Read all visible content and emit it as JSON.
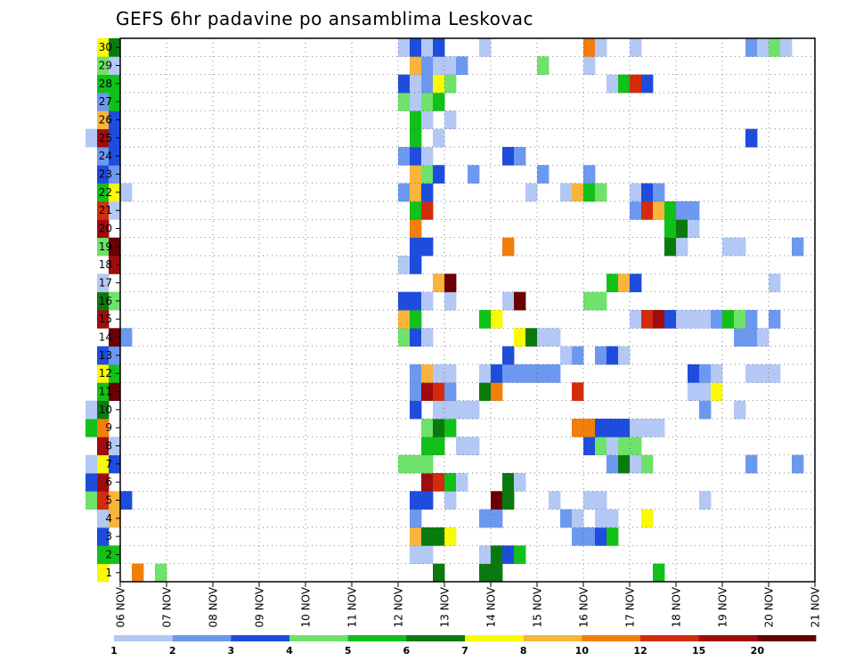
{
  "chart_data": {
    "type": "heatmap",
    "title": "GEFS 6hr padavine po ansamblima Leskovac",
    "xlabel": "",
    "ylabel": "",
    "x_ticks": [
      "06 NOV",
      "07 NOV",
      "08 NOV",
      "09 NOV",
      "10 NOV",
      "11 NOV",
      "12 NOV",
      "13 NOV",
      "14 NOV",
      "15 NOV",
      "16 NOV",
      "17 NOV",
      "18 NOV",
      "19 NOV",
      "20 NOV",
      "21 NOV"
    ],
    "y_ticks": [
      "1",
      "2",
      "3",
      "4",
      "5",
      "6",
      "7",
      "8",
      "9",
      "10",
      "11",
      "12",
      "13",
      "14",
      "15",
      "16",
      "17",
      "18",
      "19",
      "20",
      "21",
      "22",
      "23",
      "24",
      "25",
      "26",
      "27",
      "28",
      "29",
      "30"
    ],
    "steps_per_day": 4,
    "n_steps": 60,
    "legend": {
      "labels": [
        "1",
        "2",
        "3",
        "4",
        "5",
        "6",
        "7",
        "8",
        "10",
        "12",
        "15",
        "20"
      ],
      "colors": [
        "#b4c8f5",
        "#6c98f0",
        "#1e4ddd",
        "#6ee26a",
        "#12c01a",
        "#0a7a0e",
        "#f9f908",
        "#f9b43c",
        "#f27f0c",
        "#d22c0c",
        "#a00c0c",
        "#6a0004"
      ]
    },
    "cells": [
      [
        1,
        24,
        7
      ],
      [
        1,
        27,
        9
      ],
      [
        1,
        29,
        4
      ],
      [
        1,
        53,
        6
      ],
      [
        1,
        57,
        6
      ],
      [
        1,
        58,
        6
      ],
      [
        1,
        72,
        5
      ],
      [
        2,
        24,
        5
      ],
      [
        2,
        25,
        5
      ],
      [
        2,
        51,
        1
      ],
      [
        2,
        52,
        1
      ],
      [
        2,
        57,
        1
      ],
      [
        2,
        58,
        6
      ],
      [
        2,
        59,
        3
      ],
      [
        2,
        60,
        5
      ],
      [
        3,
        24,
        3
      ],
      [
        3,
        51,
        8
      ],
      [
        3,
        52,
        6
      ],
      [
        3,
        53,
        6
      ],
      [
        3,
        54,
        7
      ],
      [
        3,
        65,
        2
      ],
      [
        3,
        66,
        2
      ],
      [
        3,
        67,
        3
      ],
      [
        3,
        68,
        5
      ],
      [
        4,
        24,
        1
      ],
      [
        4,
        25,
        8
      ],
      [
        4,
        51,
        2
      ],
      [
        4,
        57,
        2
      ],
      [
        4,
        58,
        2
      ],
      [
        4,
        64,
        2
      ],
      [
        4,
        65,
        1
      ],
      [
        4,
        67,
        1
      ],
      [
        4,
        68,
        1
      ],
      [
        4,
        71,
        7
      ],
      [
        5,
        23,
        4
      ],
      [
        5,
        24,
        10
      ],
      [
        5,
        25,
        8
      ],
      [
        5,
        26,
        3
      ],
      [
        5,
        51,
        3
      ],
      [
        5,
        52,
        3
      ],
      [
        5,
        54,
        1
      ],
      [
        5,
        58,
        12
      ],
      [
        5,
        59,
        6
      ],
      [
        5,
        63,
        1
      ],
      [
        5,
        66,
        1
      ],
      [
        5,
        67,
        1
      ],
      [
        5,
        76,
        1
      ],
      [
        6,
        23,
        3
      ],
      [
        6,
        24,
        11
      ],
      [
        6,
        52,
        11
      ],
      [
        6,
        53,
        10
      ],
      [
        6,
        54,
        5
      ],
      [
        6,
        55,
        1
      ],
      [
        6,
        59,
        6
      ],
      [
        6,
        60,
        1
      ],
      [
        7,
        23,
        1
      ],
      [
        7,
        24,
        7
      ],
      [
        7,
        25,
        3
      ],
      [
        7,
        50,
        4
      ],
      [
        7,
        51,
        4
      ],
      [
        7,
        52,
        4
      ],
      [
        7,
        68,
        2
      ],
      [
        7,
        69,
        6
      ],
      [
        7,
        70,
        1
      ],
      [
        7,
        71,
        4
      ],
      [
        7,
        80,
        2
      ],
      [
        7,
        84,
        2
      ],
      [
        8,
        24,
        11
      ],
      [
        8,
        25,
        1
      ],
      [
        8,
        52,
        5
      ],
      [
        8,
        53,
        5
      ],
      [
        8,
        55,
        1
      ],
      [
        8,
        56,
        1
      ],
      [
        8,
        66,
        3
      ],
      [
        8,
        67,
        4
      ],
      [
        8,
        68,
        1
      ],
      [
        8,
        69,
        4
      ],
      [
        8,
        70,
        4
      ],
      [
        9,
        23,
        5
      ],
      [
        9,
        24,
        9
      ],
      [
        9,
        52,
        4
      ],
      [
        9,
        53,
        6
      ],
      [
        9,
        54,
        5
      ],
      [
        9,
        65,
        9
      ],
      [
        9,
        66,
        9
      ],
      [
        9,
        67,
        3
      ],
      [
        9,
        68,
        3
      ],
      [
        9,
        69,
        3
      ],
      [
        9,
        70,
        1
      ],
      [
        9,
        71,
        1
      ],
      [
        9,
        72,
        1
      ],
      [
        10,
        23,
        1
      ],
      [
        10,
        24,
        6
      ],
      [
        10,
        51,
        3
      ],
      [
        10,
        53,
        1
      ],
      [
        10,
        54,
        1
      ],
      [
        10,
        55,
        1
      ],
      [
        10,
        56,
        1
      ],
      [
        10,
        76,
        2
      ],
      [
        10,
        79,
        1
      ],
      [
        11,
        24,
        5
      ],
      [
        11,
        25,
        12
      ],
      [
        11,
        51,
        2
      ],
      [
        11,
        52,
        11
      ],
      [
        11,
        53,
        10
      ],
      [
        11,
        54,
        2
      ],
      [
        11,
        57,
        6
      ],
      [
        11,
        58,
        9
      ],
      [
        11,
        65,
        10
      ],
      [
        11,
        75,
        1
      ],
      [
        11,
        76,
        1
      ],
      [
        11,
        77,
        7
      ],
      [
        12,
        24,
        7
      ],
      [
        12,
        25,
        5
      ],
      [
        12,
        51,
        2
      ],
      [
        12,
        52,
        8
      ],
      [
        12,
        53,
        1
      ],
      [
        12,
        54,
        1
      ],
      [
        12,
        57,
        1
      ],
      [
        12,
        58,
        3
      ],
      [
        12,
        59,
        2
      ],
      [
        12,
        60,
        2
      ],
      [
        12,
        61,
        2
      ],
      [
        12,
        62,
        2
      ],
      [
        12,
        63,
        2
      ],
      [
        12,
        75,
        3
      ],
      [
        12,
        76,
        2
      ],
      [
        12,
        77,
        1
      ],
      [
        12,
        80,
        1
      ],
      [
        12,
        81,
        1
      ],
      [
        12,
        82,
        1
      ],
      [
        13,
        24,
        3
      ],
      [
        13,
        25,
        2
      ],
      [
        13,
        59,
        3
      ],
      [
        13,
        64,
        1
      ],
      [
        13,
        65,
        2
      ],
      [
        13,
        67,
        2
      ],
      [
        13,
        68,
        3
      ],
      [
        13,
        69,
        1
      ],
      [
        14,
        25,
        12
      ],
      [
        14,
        26,
        2
      ],
      [
        14,
        50,
        4
      ],
      [
        14,
        51,
        3
      ],
      [
        14,
        52,
        1
      ],
      [
        14,
        60,
        7
      ],
      [
        14,
        61,
        6
      ],
      [
        14,
        62,
        1
      ],
      [
        14,
        63,
        1
      ],
      [
        14,
        79,
        2
      ],
      [
        14,
        80,
        2
      ],
      [
        14,
        81,
        1
      ],
      [
        15,
        24,
        11
      ],
      [
        15,
        50,
        8
      ],
      [
        15,
        51,
        5
      ],
      [
        15,
        57,
        5
      ],
      [
        15,
        58,
        7
      ],
      [
        15,
        70,
        1
      ],
      [
        15,
        71,
        10
      ],
      [
        15,
        72,
        11
      ],
      [
        15,
        73,
        3
      ],
      [
        15,
        74,
        1
      ],
      [
        15,
        75,
        1
      ],
      [
        15,
        76,
        1
      ],
      [
        15,
        77,
        2
      ],
      [
        15,
        78,
        5
      ],
      [
        15,
        79,
        4
      ],
      [
        15,
        80,
        2
      ],
      [
        15,
        82,
        2
      ],
      [
        16,
        24,
        6
      ],
      [
        16,
        25,
        4
      ],
      [
        16,
        50,
        3
      ],
      [
        16,
        51,
        3
      ],
      [
        16,
        52,
        1
      ],
      [
        16,
        54,
        1
      ],
      [
        16,
        59,
        1
      ],
      [
        16,
        60,
        12
      ],
      [
        16,
        66,
        4
      ],
      [
        16,
        67,
        4
      ],
      [
        17,
        24,
        1
      ],
      [
        17,
        53,
        8
      ],
      [
        17,
        54,
        12
      ],
      [
        17,
        68,
        5
      ],
      [
        17,
        69,
        8
      ],
      [
        17,
        70,
        3
      ],
      [
        17,
        82,
        1
      ],
      [
        18,
        25,
        11
      ],
      [
        18,
        50,
        1
      ],
      [
        18,
        51,
        3
      ],
      [
        19,
        24,
        4
      ],
      [
        19,
        25,
        12
      ],
      [
        19,
        51,
        3
      ],
      [
        19,
        52,
        3
      ],
      [
        19,
        59,
        9
      ],
      [
        19,
        73,
        6
      ],
      [
        19,
        74,
        1
      ],
      [
        19,
        78,
        1
      ],
      [
        19,
        79,
        1
      ],
      [
        19,
        84,
        2
      ],
      [
        20,
        24,
        11
      ],
      [
        20,
        51,
        9
      ],
      [
        20,
        73,
        5
      ],
      [
        20,
        74,
        6
      ],
      [
        20,
        75,
        1
      ],
      [
        21,
        24,
        10
      ],
      [
        21,
        25,
        1
      ],
      [
        21,
        51,
        5
      ],
      [
        21,
        52,
        10
      ],
      [
        21,
        70,
        2
      ],
      [
        21,
        71,
        10
      ],
      [
        21,
        72,
        8
      ],
      [
        21,
        73,
        5
      ],
      [
        21,
        74,
        2
      ],
      [
        21,
        75,
        2
      ],
      [
        22,
        24,
        5
      ],
      [
        22,
        25,
        7
      ],
      [
        22,
        26,
        1
      ],
      [
        22,
        50,
        2
      ],
      [
        22,
        51,
        8
      ],
      [
        22,
        52,
        3
      ],
      [
        22,
        61,
        1
      ],
      [
        22,
        64,
        1
      ],
      [
        22,
        65,
        8
      ],
      [
        22,
        66,
        5
      ],
      [
        22,
        67,
        4
      ],
      [
        22,
        70,
        1
      ],
      [
        22,
        71,
        3
      ],
      [
        22,
        72,
        2
      ],
      [
        23,
        24,
        3
      ],
      [
        23,
        25,
        2
      ],
      [
        23,
        51,
        8
      ],
      [
        23,
        52,
        4
      ],
      [
        23,
        53,
        3
      ],
      [
        23,
        56,
        2
      ],
      [
        23,
        62,
        2
      ],
      [
        23,
        66,
        2
      ],
      [
        24,
        24,
        2
      ],
      [
        24,
        25,
        3
      ],
      [
        24,
        50,
        2
      ],
      [
        24,
        51,
        3
      ],
      [
        24,
        52,
        1
      ],
      [
        24,
        59,
        3
      ],
      [
        24,
        60,
        2
      ],
      [
        25,
        23,
        1
      ],
      [
        25,
        24,
        11
      ],
      [
        25,
        25,
        3
      ],
      [
        25,
        51,
        5
      ],
      [
        25,
        53,
        1
      ],
      [
        25,
        80,
        3
      ],
      [
        26,
        24,
        8
      ],
      [
        26,
        25,
        3
      ],
      [
        26,
        51,
        5
      ],
      [
        26,
        52,
        1
      ],
      [
        26,
        54,
        1
      ],
      [
        27,
        24,
        2
      ],
      [
        27,
        25,
        5
      ],
      [
        27,
        50,
        4
      ],
      [
        27,
        51,
        1
      ],
      [
        27,
        52,
        4
      ],
      [
        27,
        53,
        5
      ],
      [
        28,
        24,
        5
      ],
      [
        28,
        25,
        5
      ],
      [
        28,
        50,
        3
      ],
      [
        28,
        51,
        1
      ],
      [
        28,
        52,
        2
      ],
      [
        28,
        53,
        7
      ],
      [
        28,
        54,
        4
      ],
      [
        28,
        68,
        1
      ],
      [
        28,
        69,
        5
      ],
      [
        28,
        70,
        10
      ],
      [
        28,
        71,
        3
      ],
      [
        29,
        24,
        4
      ],
      [
        29,
        25,
        1
      ],
      [
        29,
        51,
        8
      ],
      [
        29,
        52,
        2
      ],
      [
        29,
        53,
        1
      ],
      [
        29,
        54,
        1
      ],
      [
        29,
        55,
        2
      ],
      [
        29,
        62,
        4
      ],
      [
        29,
        66,
        1
      ],
      [
        30,
        24,
        7
      ],
      [
        30,
        25,
        6
      ],
      [
        30,
        50,
        1
      ],
      [
        30,
        51,
        3
      ],
      [
        30,
        52,
        1
      ],
      [
        30,
        53,
        3
      ],
      [
        30,
        57,
        1
      ],
      [
        30,
        66,
        9
      ],
      [
        30,
        67,
        1
      ],
      [
        30,
        70,
        1
      ],
      [
        30,
        80,
        2
      ],
      [
        30,
        81,
        1
      ],
      [
        30,
        82,
        4
      ],
      [
        30,
        83,
        1
      ]
    ]
  }
}
